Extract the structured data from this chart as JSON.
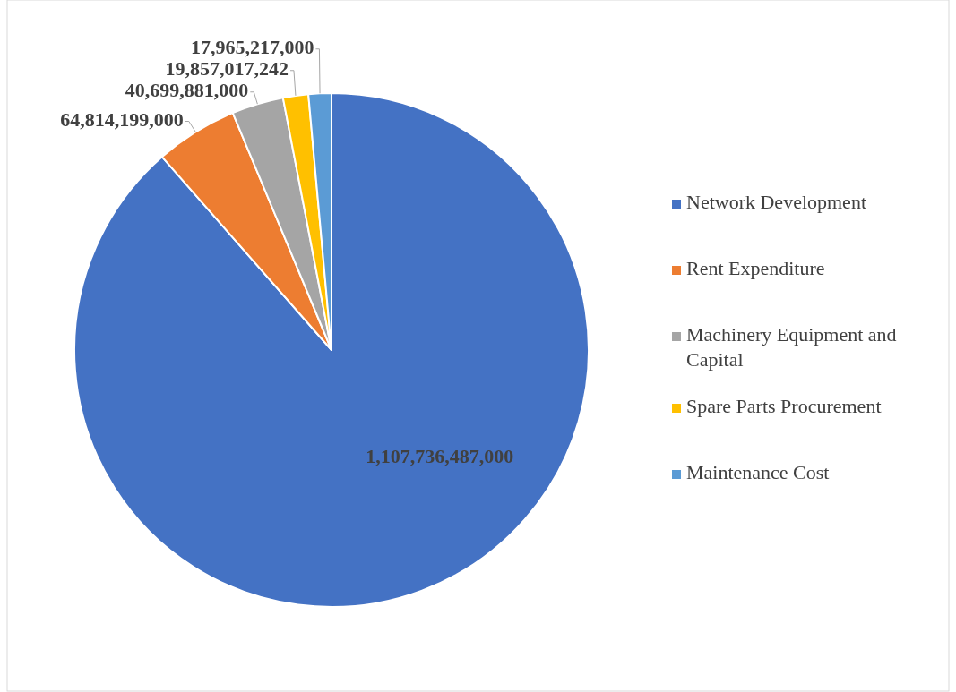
{
  "chart_data": {
    "type": "pie",
    "categories": [
      "Network Development",
      "Rent Expenditure",
      "Machinery Equipment and Capital",
      "Spare Parts Procurement",
      "Maintenance Cost"
    ],
    "values": [
      1107736487000,
      64814199000,
      40699881000,
      19857017242,
      17965217000
    ],
    "colors": [
      "#4472c4",
      "#ed7d31",
      "#a5a5a5",
      "#ffc000",
      "#5b9bd5"
    ],
    "value_labels": [
      "1,107,736,487,000",
      "64,814,199,000",
      "40,699,881,000",
      "19,857,017,242",
      "17,965,217,000"
    ],
    "legend": "right"
  }
}
